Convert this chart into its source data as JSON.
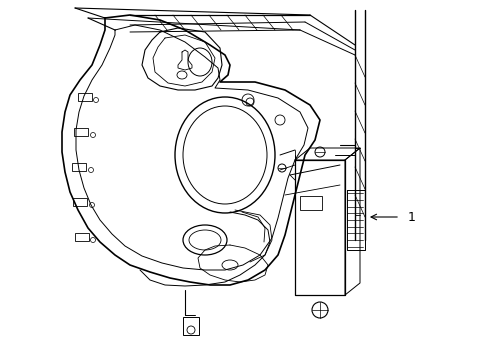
{
  "background_color": "#ffffff",
  "line_color": "#000000",
  "fig_width": 4.89,
  "fig_height": 3.6,
  "dpi": 100,
  "label_text": "1",
  "label_fontsize": 9
}
